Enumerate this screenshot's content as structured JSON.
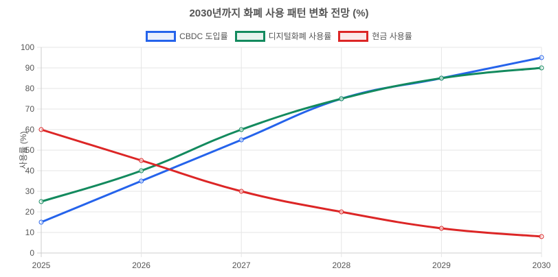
{
  "title": "2030년까지 화폐 사용 패턴 변화 전망 (%)",
  "legend": [
    {
      "label": "CBDC 도입률",
      "color": "#2563eb",
      "fill": "#e9effc"
    },
    {
      "label": "디지털화폐 사용률",
      "color": "#138a5e",
      "fill": "#e7f3ee"
    },
    {
      "label": "현금 사용률",
      "color": "#dc2626",
      "fill": "#fbe9e9"
    }
  ],
  "ylabel": "사용률 (%)",
  "chart_data": {
    "type": "line",
    "title": "2030년까지 화폐 사용 패턴 변화 전망 (%)",
    "xlabel": "",
    "ylabel": "사용률 (%)",
    "categories": [
      "2025",
      "2026",
      "2027",
      "2028",
      "2029",
      "2030"
    ],
    "ylim": [
      0,
      100
    ],
    "yticks": [
      0,
      10,
      20,
      30,
      40,
      50,
      60,
      70,
      80,
      90,
      100
    ],
    "grid": true,
    "legend_position": "top",
    "series": [
      {
        "name": "CBDC 도입률",
        "color": "#2563eb",
        "values": [
          15,
          35,
          55,
          75,
          85,
          95
        ]
      },
      {
        "name": "디지털화폐 사용률",
        "color": "#138a5e",
        "values": [
          25,
          40,
          60,
          75,
          85,
          90
        ]
      },
      {
        "name": "현금 사용률",
        "color": "#dc2626",
        "values": [
          60,
          45,
          30,
          20,
          12,
          8
        ]
      }
    ]
  }
}
